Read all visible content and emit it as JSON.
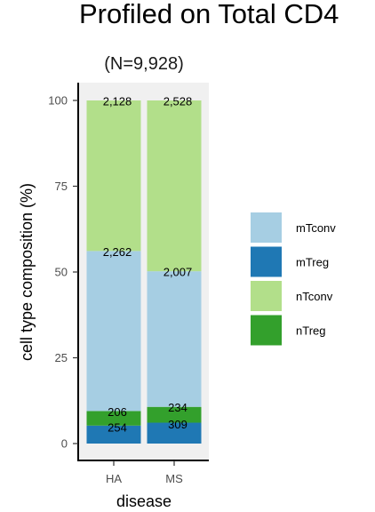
{
  "chart_data": {
    "type": "bar",
    "stacked": true,
    "normalized": true,
    "title": "Profiled on Total CD4",
    "subtitle": "(N=9,928)",
    "xlabel": "disease",
    "ylabel": "cell type composition (%)",
    "ylim": [
      0,
      100
    ],
    "yticks": [
      0,
      25,
      50,
      75,
      100
    ],
    "categories": [
      "HA",
      "MS"
    ],
    "series": [
      {
        "name": "nTreg",
        "color": "#33a02c",
        "counts": [
          206,
          234
        ]
      },
      {
        "name": "mTreg",
        "color": "#1f78b4",
        "counts": [
          254,
          309
        ]
      },
      {
        "name": "mTconv",
        "color": "#a6cee3",
        "counts": [
          2262,
          2007
        ]
      },
      {
        "name": "nTconv",
        "color": "#b2df8a",
        "counts": [
          2128,
          2528
        ]
      }
    ],
    "stack_order_bottom_to_top": [
      "mTreg",
      "nTreg",
      "mTconv",
      "nTconv"
    ],
    "legend_order": [
      "mTconv",
      "mTreg",
      "nTconv",
      "nTreg"
    ],
    "legend_position": "right",
    "panel_background": "#f0f0f0"
  }
}
